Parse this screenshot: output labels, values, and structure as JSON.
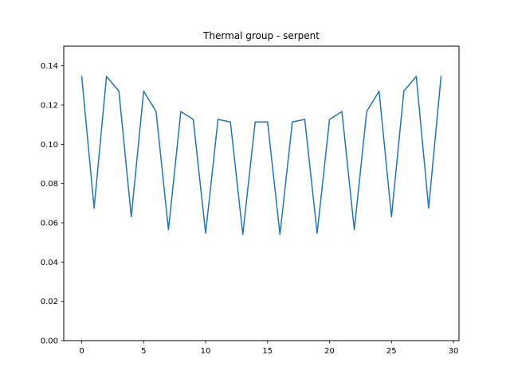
{
  "chart_data": {
    "type": "line",
    "title": "Thermal group - serpent",
    "xlabel": "",
    "ylabel": "",
    "xlim": [
      -1.45,
      30.45
    ],
    "ylim": [
      0.0,
      0.15
    ],
    "x_ticks": [
      0,
      5,
      10,
      15,
      20,
      25,
      30
    ],
    "x_tick_labels": [
      "0",
      "5",
      "10",
      "15",
      "20",
      "25",
      "30"
    ],
    "y_ticks": [
      0.0,
      0.02,
      0.04,
      0.06,
      0.08,
      0.1,
      0.12,
      0.14
    ],
    "y_tick_labels": [
      "0.00",
      "0.02",
      "0.04",
      "0.06",
      "0.08",
      "0.10",
      "0.12",
      "0.14"
    ],
    "grid": false,
    "legend": "none",
    "series": [
      {
        "color": "#1f77b4",
        "x": [
          0,
          1,
          2,
          3,
          4,
          5,
          6,
          7,
          8,
          9,
          10,
          11,
          12,
          13,
          14,
          15,
          16,
          17,
          18,
          19,
          20,
          21,
          22,
          23,
          24,
          25,
          26,
          27,
          28,
          29
        ],
        "values": [
          0.1346,
          0.0675,
          0.1346,
          0.1271,
          0.0631,
          0.1271,
          0.1167,
          0.0565,
          0.1167,
          0.1127,
          0.0547,
          0.1127,
          0.1114,
          0.0541,
          0.1114,
          0.1114,
          0.0541,
          0.1114,
          0.1127,
          0.0547,
          0.1127,
          0.1167,
          0.0565,
          0.1167,
          0.1271,
          0.0631,
          0.1271,
          0.1346,
          0.0675,
          0.1346
        ]
      }
    ]
  }
}
